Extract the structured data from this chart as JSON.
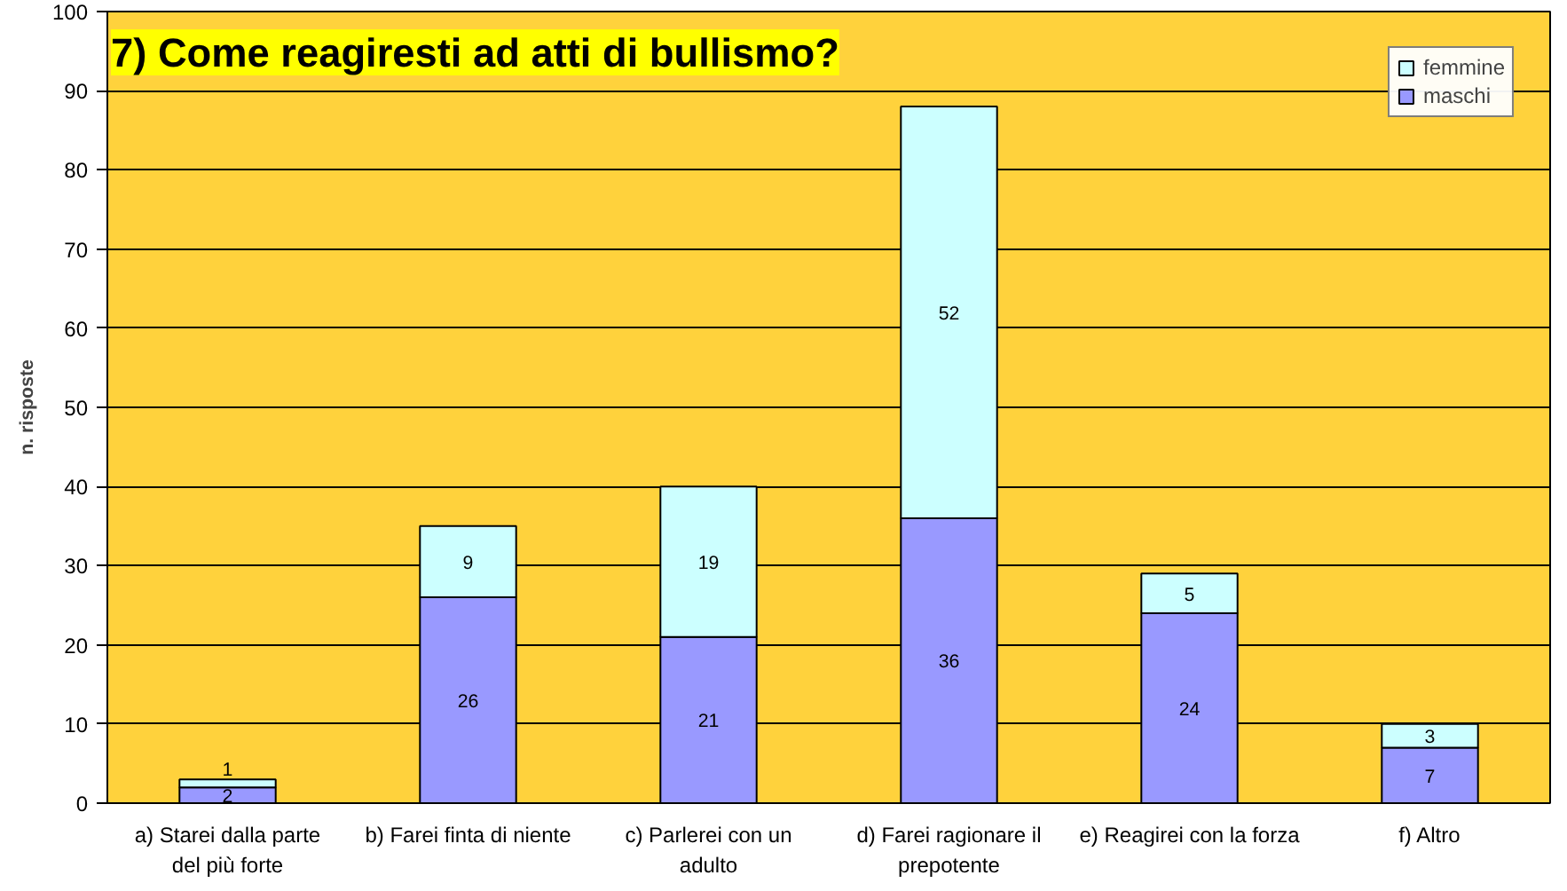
{
  "chart_data": {
    "type": "bar",
    "stacked": true,
    "title": "7) Come reagiresti ad atti di bullismo?",
    "ylabel": "n. risposte",
    "categories": [
      "a) Starei dalla parte del più forte",
      "b) Farei finta di niente",
      "c) Parlerei con un adulto",
      "d) Farei ragionare il prepotente",
      "e) Reagirei con la forza",
      "f) Altro"
    ],
    "series": [
      {
        "name": "maschi",
        "color": "#9999ff",
        "values": [
          2,
          26,
          21,
          36,
          24,
          7
        ]
      },
      {
        "name": "femmine",
        "color": "#ccffff",
        "values": [
          1,
          9,
          19,
          52,
          5,
          3
        ]
      }
    ],
    "ylim": [
      0,
      100
    ],
    "yticks": [
      0,
      10,
      20,
      30,
      40,
      50,
      60,
      70,
      80,
      90,
      100
    ],
    "grid": "y",
    "legend": "top right",
    "data_labels": true
  }
}
